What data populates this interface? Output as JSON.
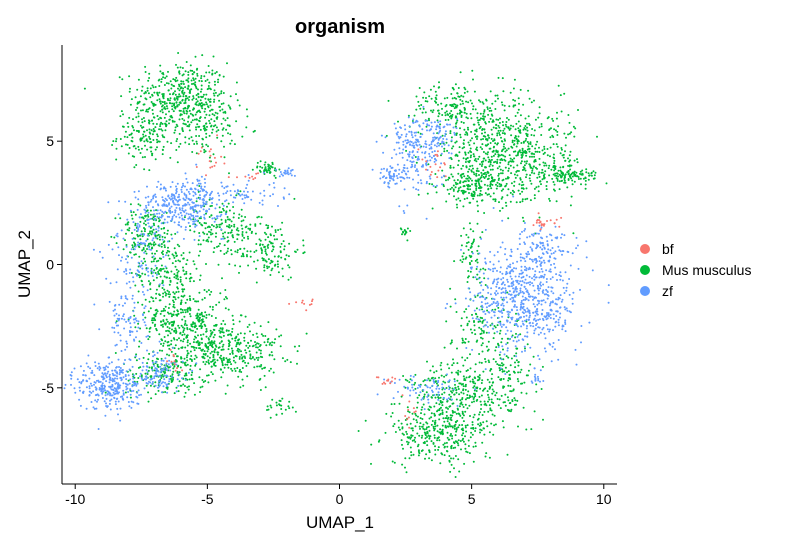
{
  "chart_data": {
    "type": "scatter",
    "title": "organism",
    "xlabel": "UMAP_1",
    "ylabel": "UMAP_2",
    "xlim": [
      -10.5,
      10.5
    ],
    "ylim": [
      -8.9,
      8.9
    ],
    "xticks": [
      -10,
      -5,
      0,
      5,
      10
    ],
    "xtick_labels": [
      "-10",
      "-5",
      "0",
      "5",
      "10"
    ],
    "yticks": [
      -5,
      0,
      5
    ],
    "ytick_labels": [
      "-5",
      "0",
      "5"
    ],
    "grid": false,
    "legend_position": "right",
    "colors": {
      "bf": "#F8766D",
      "Mus musculus": "#00BA38",
      "zf": "#619CFF"
    },
    "series": [
      {
        "name": "Mus musculus",
        "color": "#00BA38",
        "clusters": [
          {
            "center": [
              -6.0,
              6.8
            ],
            "spread": [
              0.9,
              0.7
            ],
            "n": 420
          },
          {
            "center": [
              -7.2,
              5.2
            ],
            "spread": [
              0.6,
              0.5
            ],
            "n": 150
          },
          {
            "center": [
              -5.0,
              5.5
            ],
            "spread": [
              0.6,
              0.6
            ],
            "n": 120
          },
          {
            "center": [
              -4.5,
              1.5
            ],
            "spread": [
              0.8,
              0.6
            ],
            "n": 160
          },
          {
            "center": [
              -2.7,
              0.6
            ],
            "spread": [
              0.6,
              0.6
            ],
            "n": 140
          },
          {
            "center": [
              -7.3,
              1.2
            ],
            "spread": [
              0.5,
              0.6
            ],
            "n": 150
          },
          {
            "center": [
              -6.5,
              -0.4
            ],
            "spread": [
              0.6,
              0.9
            ],
            "n": 200
          },
          {
            "center": [
              -5.8,
              -2.3
            ],
            "spread": [
              0.9,
              0.7
            ],
            "n": 280
          },
          {
            "center": [
              -4.4,
              -3.5
            ],
            "spread": [
              1.1,
              0.6
            ],
            "n": 400
          },
          {
            "center": [
              -6.7,
              -4.5
            ],
            "spread": [
              0.8,
              0.4
            ],
            "n": 150
          },
          {
            "center": [
              -2.7,
              3.9
            ],
            "spread": [
              0.25,
              0.15
            ],
            "n": 45
          },
          {
            "center": [
              -2.3,
              -5.8
            ],
            "spread": [
              0.25,
              0.2
            ],
            "n": 25
          },
          {
            "center": [
              4.1,
              6.4
            ],
            "spread": [
              0.7,
              0.5
            ],
            "n": 130
          },
          {
            "center": [
              5.8,
              5.0
            ],
            "spread": [
              1.3,
              1.0
            ],
            "n": 450
          },
          {
            "center": [
              7.2,
              4.0
            ],
            "spread": [
              1.0,
              0.8
            ],
            "n": 300
          },
          {
            "center": [
              5.0,
              3.2
            ],
            "spread": [
              0.6,
              0.4
            ],
            "n": 180
          },
          {
            "center": [
              8.8,
              3.6
            ],
            "spread": [
              0.5,
              0.15
            ],
            "n": 90
          },
          {
            "center": [
              4.9,
              0.5
            ],
            "spread": [
              0.3,
              0.6
            ],
            "n": 60
          },
          {
            "center": [
              2.5,
              1.3
            ],
            "spread": [
              0.1,
              0.1
            ],
            "n": 15
          },
          {
            "center": [
              5.5,
              -2.5
            ],
            "spread": [
              0.6,
              0.8
            ],
            "n": 110
          },
          {
            "center": [
              4.6,
              -5.3
            ],
            "spread": [
              1.0,
              0.7
            ],
            "n": 320
          },
          {
            "center": [
              3.8,
              -6.9
            ],
            "spread": [
              1.0,
              0.6
            ],
            "n": 320
          },
          {
            "center": [
              6.3,
              -4.3
            ],
            "spread": [
              0.6,
              0.8
            ],
            "n": 110
          }
        ]
      },
      {
        "name": "zf",
        "color": "#619CFF",
        "clusters": [
          {
            "center": [
              -6.0,
              2.4
            ],
            "spread": [
              0.8,
              0.5
            ],
            "n": 320
          },
          {
            "center": [
              -4.2,
              2.9
            ],
            "spread": [
              1.0,
              0.3
            ],
            "n": 80
          },
          {
            "center": [
              -7.5,
              0.5
            ],
            "spread": [
              0.5,
              1.0
            ],
            "n": 90
          },
          {
            "center": [
              -8.0,
              -2.0
            ],
            "spread": [
              0.4,
              1.2
            ],
            "n": 110
          },
          {
            "center": [
              -8.7,
              -4.9
            ],
            "spread": [
              0.6,
              0.5
            ],
            "n": 300
          },
          {
            "center": [
              -6.9,
              -4.3
            ],
            "spread": [
              0.5,
              0.4
            ],
            "n": 110
          },
          {
            "center": [
              -2.0,
              3.7
            ],
            "spread": [
              0.2,
              0.1
            ],
            "n": 20
          },
          {
            "center": [
              2.8,
              4.6
            ],
            "spread": [
              0.5,
              0.8
            ],
            "n": 200
          },
          {
            "center": [
              2.0,
              3.6
            ],
            "spread": [
              0.3,
              0.2
            ],
            "n": 50
          },
          {
            "center": [
              3.8,
              5.2
            ],
            "spread": [
              0.3,
              0.4
            ],
            "n": 60
          },
          {
            "center": [
              7.0,
              -1.4
            ],
            "spread": [
              1.0,
              1.1
            ],
            "n": 650
          },
          {
            "center": [
              7.7,
              0.8
            ],
            "spread": [
              0.4,
              0.4
            ],
            "n": 80
          },
          {
            "center": [
              3.3,
              -5.0
            ],
            "spread": [
              0.7,
              0.3
            ],
            "n": 70
          },
          {
            "center": [
              7.5,
              -4.6
            ],
            "spread": [
              0.1,
              0.2
            ],
            "n": 15
          }
        ]
      },
      {
        "name": "bf",
        "color": "#F8766D",
        "clusters": [
          {
            "center": [
              -5.0,
              4.4
            ],
            "spread": [
              0.3,
              0.3
            ],
            "n": 18
          },
          {
            "center": [
              -3.4,
              3.6
            ],
            "spread": [
              0.3,
              0.1
            ],
            "n": 8
          },
          {
            "center": [
              -1.4,
              -1.6
            ],
            "spread": [
              0.3,
              0.1
            ],
            "n": 10
          },
          {
            "center": [
              -6.3,
              -4.0
            ],
            "spread": [
              0.3,
              0.2
            ],
            "n": 10
          },
          {
            "center": [
              3.6,
              4.0
            ],
            "spread": [
              0.3,
              0.3
            ],
            "n": 18
          },
          {
            "center": [
              7.9,
              1.6
            ],
            "spread": [
              0.3,
              0.15
            ],
            "n": 22
          },
          {
            "center": [
              1.8,
              -4.7
            ],
            "spread": [
              0.2,
              0.1
            ],
            "n": 12
          },
          {
            "center": [
              2.7,
              -6.0
            ],
            "spread": [
              0.2,
              0.3
            ],
            "n": 10
          }
        ]
      }
    ],
    "legend": [
      {
        "label": "bf",
        "color": "#F8766D"
      },
      {
        "label": "Mus musculus",
        "color": "#00BA38"
      },
      {
        "label": "zf",
        "color": "#619CFF"
      }
    ]
  }
}
